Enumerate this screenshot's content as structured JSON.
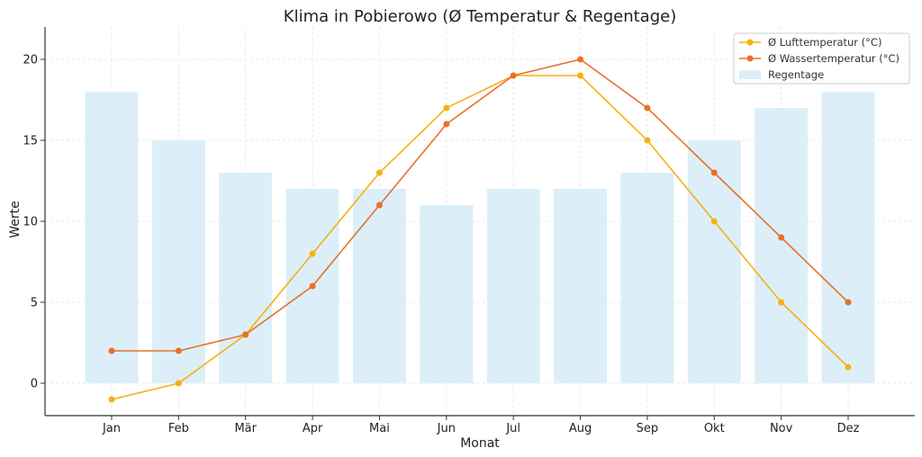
{
  "chart_data": {
    "type": "bar+line",
    "title": "Klima in Pobierowo (Ø Temperatur & Regentage)",
    "xlabel": "Monat",
    "ylabel": "Werte",
    "categories": [
      "Jan",
      "Feb",
      "Mär",
      "Apr",
      "Mai",
      "Jun",
      "Jul",
      "Aug",
      "Sep",
      "Okt",
      "Nov",
      "Dez"
    ],
    "ylim": [
      -2,
      22
    ],
    "yticks": [
      0,
      5,
      10,
      15,
      20
    ],
    "grid": true,
    "legend_position": "top-right",
    "series": [
      {
        "name": "Ø Lufttemperatur (°C)",
        "kind": "line",
        "color": "#F5B111",
        "values": [
          -1,
          0,
          3,
          8,
          13,
          17,
          19,
          19,
          15,
          10,
          5,
          1
        ]
      },
      {
        "name": "Ø Wassertemperatur (°C)",
        "kind": "line",
        "color": "#E8702A",
        "values": [
          2,
          2,
          3,
          6,
          11,
          16,
          19,
          20,
          17,
          13,
          9,
          5
        ]
      },
      {
        "name": "Regentage",
        "kind": "bar",
        "color": "#DCEFF8",
        "values": [
          18,
          15,
          13,
          12,
          12,
          11,
          12,
          12,
          13,
          15,
          17,
          18
        ]
      }
    ]
  }
}
